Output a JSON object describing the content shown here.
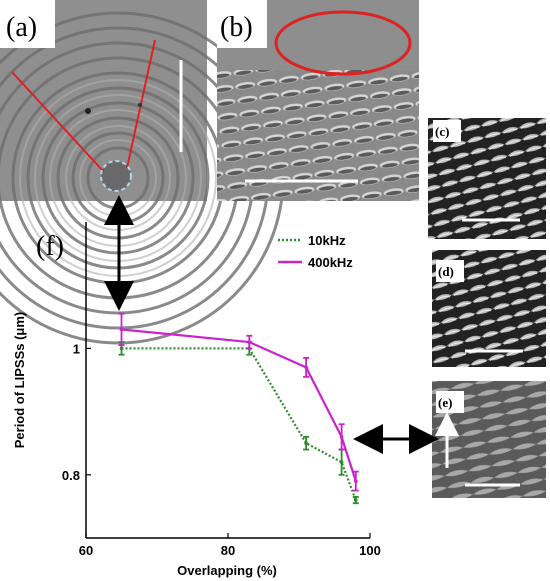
{
  "panels": {
    "a": {
      "label": "(a)"
    },
    "b": {
      "label": "(b)"
    },
    "c": {
      "label": "(c)"
    },
    "d": {
      "label": "(d)"
    },
    "e": {
      "label": "(e)"
    },
    "f": {
      "label": "(f)"
    }
  },
  "colors": {
    "series_10khz": "#2e8b2e",
    "series_400khz": "#cc22cc",
    "annotation_red": "#dd2222",
    "arrow": "#000000",
    "sem_dark": "#2a2a2a",
    "sem_mid": "#777777",
    "sem_light": "#cfcfcf"
  },
  "chart_data": {
    "type": "line",
    "xlabel": "Overlapping (%)",
    "ylabel": "Period of LIPSSs (μm)",
    "xlim": [
      60,
      100
    ],
    "ylim": [
      0.7,
      1.2
    ],
    "x_ticks": [
      60,
      80,
      100
    ],
    "y_ticks": [
      0.8,
      1
    ],
    "grid": false,
    "legend_position": "top-right",
    "series": [
      {
        "name": "10kHz",
        "style": "dotted",
        "x": [
          65,
          83,
          91,
          96,
          98
        ],
        "y": [
          1.0,
          1.0,
          0.85,
          0.82,
          0.76
        ],
        "err": [
          0.01,
          0.01,
          0.01,
          0.02,
          0.005
        ]
      },
      {
        "name": "400kHz",
        "style": "solid",
        "x": [
          65,
          83,
          91,
          96,
          98
        ],
        "y": [
          1.03,
          1.01,
          0.97,
          0.86,
          0.79
        ],
        "err": [
          0.025,
          0.01,
          0.015,
          0.02,
          0.015
        ]
      }
    ]
  }
}
